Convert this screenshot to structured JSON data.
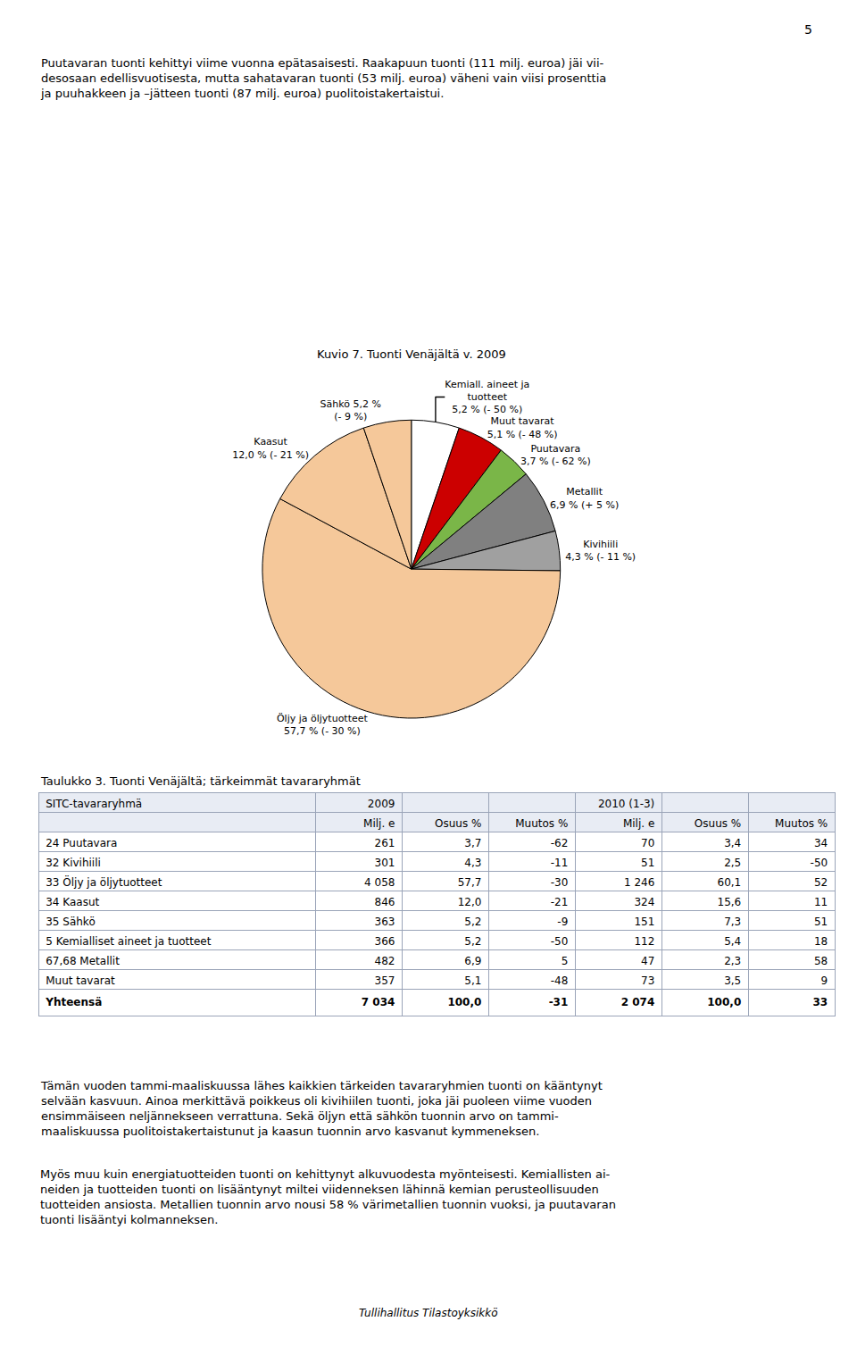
{
  "chart_data": [
    {
      "type": "pie",
      "title": "Kuvio 7. Tuonti Venäjältä v. 2009",
      "categories": [
        "Kemiall. aineet ja\ntuotteet\n5,2 % (- 50 %)",
        "Muut tavarat\n5,1 % (- 48 %)",
        "Puutavara\n3,7 % (- 62 %)",
        "Metallit\n6,9 % (+ 5 %)",
        "Kivihiili\n4,3 % (- 11 %)",
        "Öljy ja öljytuotteet\n57,7 % (- 30 %)",
        "Kaasut\n12,0 % (- 21 %)",
        "Sähkö 5,2 %\n(- 9 %)"
      ],
      "values": [
        5.2,
        5.1,
        3.7,
        6.9,
        4.3,
        57.7,
        12.0,
        5.2
      ],
      "colors": [
        "#ffffff",
        "#cc0000",
        "#7ab648",
        "#808080",
        "#a0a0a0",
        "#f5c89a",
        "#f5c89a",
        "#f5c89a"
      ],
      "annotations": [
        "5",
        "Puutavaran tuonti kehittyi viime vuonna epätasaisesti. Raakapuun tuonti (111 milj. euroa) jäi vii-\ndesosaan edellisvuotisesta, mutta sahatavaran tuonti (53 milj. euroa) väheni vain viisi prosenttia\nja puuhakkeen ja –jätteen tuonti (87 milj. euroa) puolitoistakertaistui."
      ]
    },
    {
      "type": "table",
      "title": "Taulukko 3. Tuonti Venäjältä; tärkeimmät tavararyhmät",
      "header": [
        [
          "SITC-tavararyhmä",
          "2009",
          null,
          null,
          "2010 (1-3)",
          null,
          null
        ],
        [
          null,
          "Milj. e",
          "Osuus %",
          "Muutos %",
          "Milj. e",
          "Osuus %",
          "Muutos %"
        ]
      ],
      "rows": [
        [
          "24 Puutavara",
          "261",
          "3,7",
          "-62",
          "70",
          "3,4",
          "34"
        ],
        [
          "32 Kivihiili",
          "301",
          "4,3",
          "-11",
          "51",
          "2,5",
          "-50"
        ],
        [
          "33 Öljy ja öljytuotteet",
          "4 058",
          "57,7",
          "-30",
          "1 246",
          "60,1",
          "52"
        ],
        [
          "34 Kaasut",
          "846",
          "12,0",
          "-21",
          "324",
          "15,6",
          "11"
        ],
        [
          "35 Sähkö",
          "363",
          "5,2",
          "-9",
          "151",
          "7,3",
          "51"
        ],
        [
          "5 Kemialliset aineet ja tuotteet",
          "366",
          "5,2",
          "-50",
          "112",
          "5,4",
          "18"
        ],
        [
          "67,68 Metallit",
          "482",
          "6,9",
          "5",
          "47",
          "2,3",
          "58"
        ],
        [
          "Muut tavarat",
          "357",
          "5,1",
          "-48",
          "73",
          "3,5",
          "9"
        ],
        [
          "Yhteensä",
          "7 034",
          "100,0",
          "-31",
          "2 074",
          "100,0",
          "33"
        ]
      ],
      "annotations": [
        "Tämän vuoden tammi-maaliskuussa lähes kaikkien tärkeiden tavararyhmien tuonti on kääntynyt\nselvään kasvuun. Ainoa merkittävä poikkeus oli kivihiilen tuonti, joka jäi puoleen viime vuoden\nensimmäiseen neljännekseen verrattuna. Sekä öljyn että sähkön tuonnin arvo on tammi-\nmaaliskuussa puolitoistakertaistunut ja kaasun tuonnin arvo kasvanut kymmeneksen.",
        "Myös muu kuin energiatuotteiden tuonti on kehittynyt alkuvuodesta myönteisesti. Kemiallisten ai-\nneiden ja tuotteiden tuonti on lisääntynyt miltei viidenneksen lähinnä kemian perusteollisuuden\ntuotteiden ansiosta. Metallien tuonnin arvo nousi 58 % värimetallien tuonnin vuoksi, ja puutavaran\ntuonti lisääntyi kolmanneksen.",
        "Tullihallitus Tilastoyksikkö"
      ]
    }
  ]
}
